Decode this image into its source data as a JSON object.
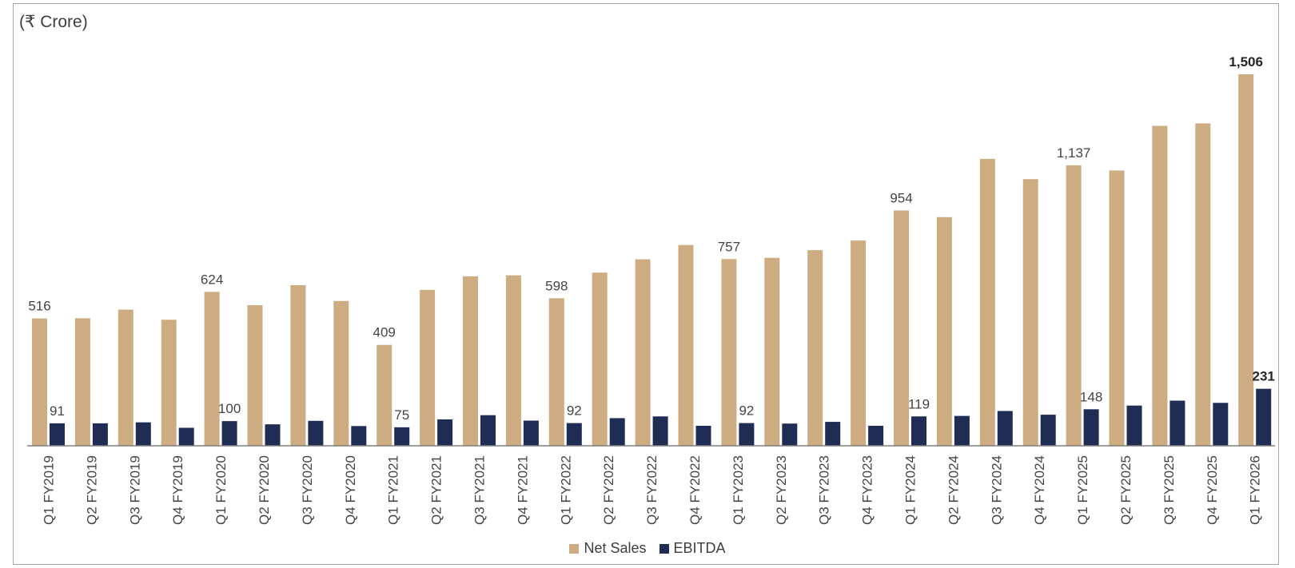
{
  "chart_data": {
    "type": "bar",
    "unit_label": "(₹ Crore)",
    "categories": [
      "Q1 FY2019",
      "Q2 FY2019",
      "Q3 FY2019",
      "Q4 FY2019",
      "Q1 FY2020",
      "Q2 FY2020",
      "Q3 FY2020",
      "Q4 FY2020",
      "Q1 FY2021",
      "Q2 FY2021",
      "Q3 FY2021",
      "Q4 FY2021",
      "Q1 FY2022",
      "Q2 FY2022",
      "Q3 FY2022",
      "Q4 FY2022",
      "Q1 FY2023",
      "Q2 FY2023",
      "Q3 FY2023",
      "Q4 FY2023",
      "Q1 FY2024",
      "Q2 FY2024",
      "Q3 FY2024",
      "Q4 FY2024",
      "Q1 FY2025",
      "Q2 FY2025",
      "Q3 FY2025",
      "Q4 FY2025",
      "Q1 FY2026"
    ],
    "series": [
      {
        "name": "Net Sales",
        "color": "#cdac82",
        "values": [
          516,
          517,
          552,
          511,
          624,
          570,
          651,
          587,
          409,
          632,
          687,
          691,
          598,
          702,
          756,
          814,
          757,
          762,
          793,
          832,
          954,
          927,
          1163,
          1081,
          1137,
          1116,
          1297,
          1307,
          1506
        ],
        "labels": {
          "0": "516",
          "4": "624",
          "8": "409",
          "12": "598",
          "16": "757",
          "20": "954",
          "24": "1,137",
          "28": "1,506"
        }
      },
      {
        "name": "EBITDA",
        "color": "#1f2d55",
        "values": [
          91,
          91,
          95,
          73,
          100,
          87,
          101,
          80,
          75,
          107,
          124,
          102,
          92,
          112,
          119,
          81,
          92,
          90,
          97,
          81,
          119,
          121,
          141,
          126,
          148,
          163,
          183,
          174,
          231
        ],
        "labels": {
          "0": "91",
          "4": "100",
          "8": "75",
          "12": "92",
          "16": "92",
          "20": "119",
          "24": "148",
          "28": "231"
        }
      }
    ],
    "bold_labels_index": 28,
    "ylim": [
      0,
      1600
    ],
    "grid": false,
    "legend_position": "bottom"
  }
}
